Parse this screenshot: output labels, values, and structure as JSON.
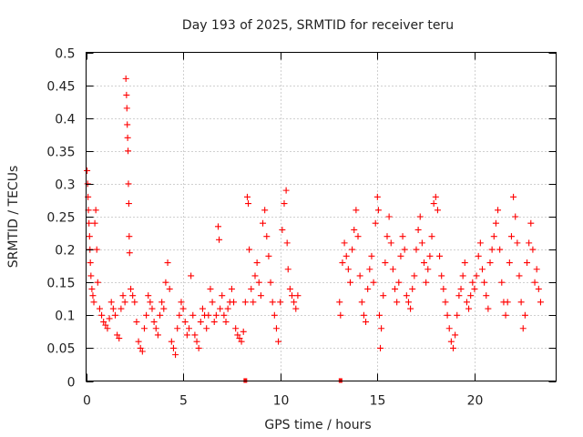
{
  "chart_data": {
    "type": "scatter",
    "title": "Day 193 of 2025, SRMTID for receiver teru",
    "xlabel": "GPS time / hours",
    "ylabel": "SRMTID / TECUs",
    "xlim": [
      0,
      24.2
    ],
    "ylim": [
      0,
      0.5
    ],
    "xticks": [
      0,
      5,
      10,
      15,
      20
    ],
    "yticks": [
      0,
      0.05,
      0.1,
      0.15,
      0.2,
      0.25,
      0.3,
      0.35,
      0.4,
      0.45,
      0.5
    ],
    "grid": true,
    "marker": "+",
    "series": [
      {
        "name": "teru",
        "color": "#ff0000",
        "points": [
          [
            0.05,
            0.32
          ],
          [
            0.08,
            0.3
          ],
          [
            0.1,
            0.28
          ],
          [
            0.12,
            0.26
          ],
          [
            0.15,
            0.24
          ],
          [
            0.18,
            0.22
          ],
          [
            0.2,
            0.2
          ],
          [
            0.22,
            0.18
          ],
          [
            0.25,
            0.16
          ],
          [
            0.3,
            0.14
          ],
          [
            0.35,
            0.13
          ],
          [
            0.4,
            0.12
          ],
          [
            0.45,
            0.24
          ],
          [
            0.5,
            0.26
          ],
          [
            0.55,
            0.2
          ],
          [
            0.6,
            0.15
          ],
          [
            0.7,
            0.11
          ],
          [
            0.8,
            0.1
          ],
          [
            0.9,
            0.09
          ],
          [
            1.0,
            0.085
          ],
          [
            1.1,
            0.08
          ],
          [
            1.2,
            0.095
          ],
          [
            1.3,
            0.12
          ],
          [
            1.4,
            0.11
          ],
          [
            1.5,
            0.1
          ],
          [
            1.6,
            0.07
          ],
          [
            1.7,
            0.065
          ],
          [
            1.8,
            0.11
          ],
          [
            1.9,
            0.13
          ],
          [
            2.0,
            0.12
          ],
          [
            2.05,
            0.46
          ],
          [
            2.08,
            0.435
          ],
          [
            2.1,
            0.415
          ],
          [
            2.12,
            0.39
          ],
          [
            2.14,
            0.37
          ],
          [
            2.16,
            0.35
          ],
          [
            2.18,
            0.3
          ],
          [
            2.2,
            0.27
          ],
          [
            2.22,
            0.22
          ],
          [
            2.24,
            0.195
          ],
          [
            2.3,
            0.14
          ],
          [
            2.4,
            0.13
          ],
          [
            2.5,
            0.12
          ],
          [
            2.6,
            0.09
          ],
          [
            2.7,
            0.06
          ],
          [
            2.8,
            0.05
          ],
          [
            2.9,
            0.045
          ],
          [
            3.0,
            0.08
          ],
          [
            3.1,
            0.1
          ],
          [
            3.2,
            0.13
          ],
          [
            3.3,
            0.12
          ],
          [
            3.4,
            0.11
          ],
          [
            3.5,
            0.09
          ],
          [
            3.6,
            0.08
          ],
          [
            3.7,
            0.07
          ],
          [
            3.8,
            0.1
          ],
          [
            3.9,
            0.12
          ],
          [
            4.0,
            0.11
          ],
          [
            4.1,
            0.15
          ],
          [
            4.2,
            0.18
          ],
          [
            4.3,
            0.14
          ],
          [
            4.4,
            0.06
          ],
          [
            4.5,
            0.05
          ],
          [
            4.6,
            0.04
          ],
          [
            4.7,
            0.08
          ],
          [
            4.8,
            0.1
          ],
          [
            4.9,
            0.12
          ],
          [
            5.0,
            0.11
          ],
          [
            5.1,
            0.09
          ],
          [
            5.2,
            0.07
          ],
          [
            5.3,
            0.08
          ],
          [
            5.4,
            0.16
          ],
          [
            5.5,
            0.1
          ],
          [
            5.6,
            0.07
          ],
          [
            5.7,
            0.06
          ],
          [
            5.8,
            0.05
          ],
          [
            5.9,
            0.09
          ],
          [
            6.0,
            0.11
          ],
          [
            6.1,
            0.1
          ],
          [
            6.2,
            0.08
          ],
          [
            6.3,
            0.1
          ],
          [
            6.4,
            0.14
          ],
          [
            6.5,
            0.12
          ],
          [
            6.6,
            0.09
          ],
          [
            6.7,
            0.1
          ],
          [
            6.8,
            0.235
          ],
          [
            6.85,
            0.215
          ],
          [
            6.9,
            0.11
          ],
          [
            7.0,
            0.13
          ],
          [
            7.1,
            0.1
          ],
          [
            7.2,
            0.09
          ],
          [
            7.3,
            0.11
          ],
          [
            7.4,
            0.12
          ],
          [
            7.5,
            0.14
          ],
          [
            7.6,
            0.12
          ],
          [
            7.7,
            0.08
          ],
          [
            7.8,
            0.07
          ],
          [
            7.9,
            0.065
          ],
          [
            8.0,
            0.06
          ],
          [
            8.1,
            0.075
          ],
          [
            8.2,
            0.12
          ],
          [
            8.3,
            0.28
          ],
          [
            8.35,
            0.27
          ],
          [
            8.4,
            0.2
          ],
          [
            8.5,
            0.14
          ],
          [
            8.6,
            0.12
          ],
          [
            8.7,
            0.16
          ],
          [
            8.8,
            0.18
          ],
          [
            8.9,
            0.15
          ],
          [
            9.0,
            0.13
          ],
          [
            9.1,
            0.24
          ],
          [
            9.2,
            0.26
          ],
          [
            9.3,
            0.22
          ],
          [
            9.4,
            0.19
          ],
          [
            9.5,
            0.15
          ],
          [
            9.6,
            0.12
          ],
          [
            9.7,
            0.1
          ],
          [
            9.8,
            0.08
          ],
          [
            9.9,
            0.06
          ],
          [
            10.0,
            0.12
          ],
          [
            10.1,
            0.23
          ],
          [
            10.2,
            0.27
          ],
          [
            10.3,
            0.29
          ],
          [
            10.35,
            0.21
          ],
          [
            10.4,
            0.17
          ],
          [
            10.5,
            0.14
          ],
          [
            10.6,
            0.13
          ],
          [
            10.7,
            0.12
          ],
          [
            10.8,
            0.11
          ],
          [
            10.9,
            0.13
          ],
          [
            13.05,
            0.12
          ],
          [
            13.1,
            0.1
          ],
          [
            13.2,
            0.18
          ],
          [
            13.3,
            0.21
          ],
          [
            13.4,
            0.19
          ],
          [
            13.5,
            0.17
          ],
          [
            13.6,
            0.15
          ],
          [
            13.7,
            0.2
          ],
          [
            13.8,
            0.23
          ],
          [
            13.9,
            0.26
          ],
          [
            14.0,
            0.22
          ],
          [
            14.1,
            0.16
          ],
          [
            14.2,
            0.12
          ],
          [
            14.3,
            0.1
          ],
          [
            14.4,
            0.09
          ],
          [
            14.5,
            0.14
          ],
          [
            14.6,
            0.17
          ],
          [
            14.7,
            0.19
          ],
          [
            14.8,
            0.15
          ],
          [
            14.9,
            0.24
          ],
          [
            15.0,
            0.28
          ],
          [
            15.05,
            0.26
          ],
          [
            15.1,
            0.1
          ],
          [
            15.15,
            0.05
          ],
          [
            15.2,
            0.08
          ],
          [
            15.3,
            0.13
          ],
          [
            15.4,
            0.18
          ],
          [
            15.5,
            0.22
          ],
          [
            15.6,
            0.25
          ],
          [
            15.7,
            0.21
          ],
          [
            15.8,
            0.17
          ],
          [
            15.9,
            0.14
          ],
          [
            16.0,
            0.12
          ],
          [
            16.1,
            0.15
          ],
          [
            16.2,
            0.19
          ],
          [
            16.3,
            0.22
          ],
          [
            16.4,
            0.2
          ],
          [
            16.5,
            0.13
          ],
          [
            16.6,
            0.12
          ],
          [
            16.7,
            0.11
          ],
          [
            16.8,
            0.14
          ],
          [
            16.9,
            0.16
          ],
          [
            17.0,
            0.2
          ],
          [
            17.1,
            0.23
          ],
          [
            17.2,
            0.25
          ],
          [
            17.3,
            0.21
          ],
          [
            17.4,
            0.18
          ],
          [
            17.5,
            0.15
          ],
          [
            17.6,
            0.17
          ],
          [
            17.7,
            0.19
          ],
          [
            17.8,
            0.22
          ],
          [
            17.9,
            0.27
          ],
          [
            18.0,
            0.28
          ],
          [
            18.1,
            0.26
          ],
          [
            18.2,
            0.19
          ],
          [
            18.3,
            0.16
          ],
          [
            18.4,
            0.14
          ],
          [
            18.5,
            0.12
          ],
          [
            18.6,
            0.1
          ],
          [
            18.7,
            0.08
          ],
          [
            18.8,
            0.06
          ],
          [
            18.9,
            0.05
          ],
          [
            19.0,
            0.07
          ],
          [
            19.1,
            0.1
          ],
          [
            19.2,
            0.13
          ],
          [
            19.3,
            0.14
          ],
          [
            19.4,
            0.16
          ],
          [
            19.5,
            0.18
          ],
          [
            19.6,
            0.12
          ],
          [
            19.7,
            0.11
          ],
          [
            19.8,
            0.13
          ],
          [
            19.9,
            0.15
          ],
          [
            20.0,
            0.14
          ],
          [
            20.1,
            0.16
          ],
          [
            20.2,
            0.19
          ],
          [
            20.3,
            0.21
          ],
          [
            20.4,
            0.17
          ],
          [
            20.5,
            0.15
          ],
          [
            20.6,
            0.13
          ],
          [
            20.7,
            0.11
          ],
          [
            20.8,
            0.18
          ],
          [
            20.9,
            0.2
          ],
          [
            21.0,
            0.22
          ],
          [
            21.1,
            0.24
          ],
          [
            21.2,
            0.26
          ],
          [
            21.3,
            0.2
          ],
          [
            21.4,
            0.15
          ],
          [
            21.5,
            0.12
          ],
          [
            21.6,
            0.1
          ],
          [
            21.7,
            0.12
          ],
          [
            21.8,
            0.18
          ],
          [
            21.9,
            0.22
          ],
          [
            22.0,
            0.28
          ],
          [
            22.1,
            0.25
          ],
          [
            22.2,
            0.21
          ],
          [
            22.3,
            0.16
          ],
          [
            22.4,
            0.12
          ],
          [
            22.5,
            0.08
          ],
          [
            22.6,
            0.1
          ],
          [
            22.7,
            0.18
          ],
          [
            22.8,
            0.21
          ],
          [
            22.9,
            0.24
          ],
          [
            23.0,
            0.2
          ],
          [
            23.1,
            0.15
          ],
          [
            23.2,
            0.17
          ],
          [
            23.3,
            0.14
          ],
          [
            23.4,
            0.12
          ]
        ]
      }
    ],
    "zero_markers": [
      8.2,
      13.1
    ]
  }
}
